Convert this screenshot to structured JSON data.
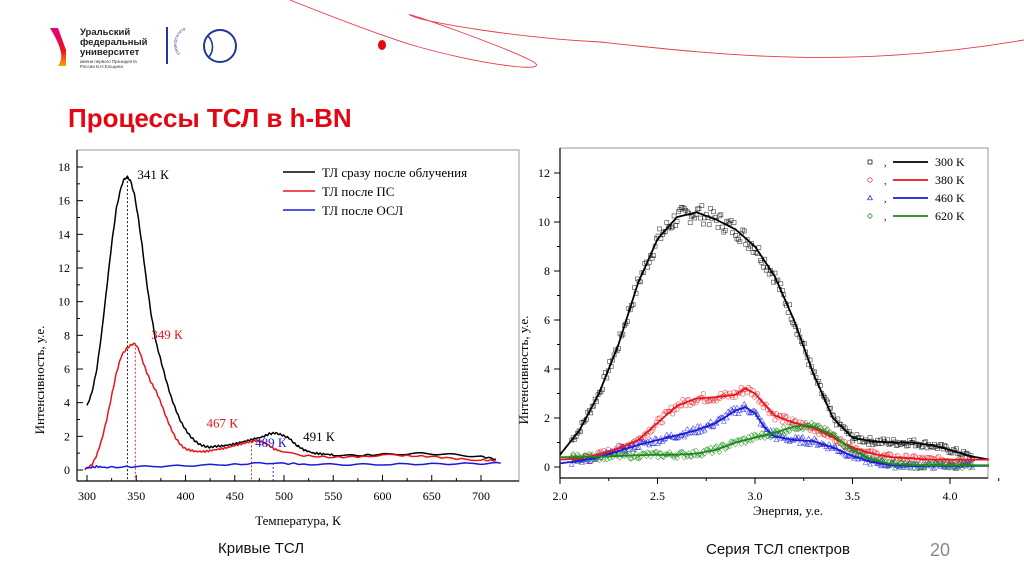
{
  "header": {
    "university_name_lines": [
      "Уральский",
      "федеральный",
      "университет"
    ],
    "university_sub_lines": [
      "имени первого Президента",
      "России Б.Н.Ельцина"
    ],
    "centenary_logo_text": "университета"
  },
  "slide": {
    "title": "Процессы ТСЛ в h-BN",
    "left_caption": "Кривые ТСЛ",
    "right_caption": "Серия ТСЛ спектров",
    "page_number": "20"
  },
  "colors": {
    "brand_red": "#e30613",
    "black": "#000000",
    "red": "#e8141c",
    "blue": "#1a1adc",
    "green": "#1a8a1a",
    "logo_blue": "#1e3a9a"
  },
  "chart_data": [
    {
      "type": "line",
      "title": "",
      "xlabel": "Температура, К",
      "ylabel": "Интенсивность, у.е.",
      "xlim": [
        290,
        725
      ],
      "ylim": [
        -0.6,
        19
      ],
      "xticks": [
        300,
        350,
        400,
        450,
        500,
        550,
        600,
        650,
        700
      ],
      "yticks": [
        0,
        2,
        4,
        6,
        8,
        10,
        12,
        14,
        16,
        18
      ],
      "legend_position": "top-right",
      "series": [
        {
          "name": "ТЛ сразу после облучения",
          "color": "#000000",
          "x": [
            300,
            305,
            310,
            315,
            320,
            325,
            330,
            335,
            338,
            341,
            344,
            348,
            352,
            356,
            360,
            365,
            370,
            375,
            380,
            385,
            390,
            395,
            400,
            405,
            410,
            415,
            420,
            425,
            430,
            440,
            450,
            460,
            470,
            480,
            485,
            491,
            497,
            505,
            512,
            520,
            530,
            540,
            550,
            570,
            600,
            620,
            640,
            660,
            680,
            700,
            715
          ],
          "y": [
            3.8,
            4.6,
            6.0,
            8.2,
            10.8,
            13.4,
            15.6,
            16.9,
            17.3,
            17.4,
            17.2,
            16.4,
            15.0,
            13.3,
            11.4,
            9.3,
            7.6,
            6.5,
            5.4,
            4.4,
            3.6,
            2.9,
            2.4,
            2.0,
            1.7,
            1.5,
            1.4,
            1.35,
            1.4,
            1.45,
            1.55,
            1.7,
            1.85,
            2.0,
            2.15,
            2.2,
            2.1,
            1.9,
            1.5,
            1.2,
            1.0,
            0.95,
            0.9,
            0.85,
            0.92,
            0.95,
            0.98,
            0.95,
            0.88,
            0.8,
            0.65
          ]
        },
        {
          "name": "ТЛ после ПС",
          "color": "#e8141c",
          "x": [
            298,
            305,
            310,
            315,
            320,
            325,
            330,
            335,
            340,
            345,
            349,
            353,
            357,
            360,
            365,
            370,
            375,
            380,
            385,
            390,
            395,
            400,
            410,
            420,
            430,
            440,
            450,
            460,
            467,
            472,
            478,
            485,
            490,
            500,
            520,
            550,
            580,
            600,
            620,
            650,
            680,
            700,
            715
          ],
          "y": [
            0.05,
            0.3,
            0.9,
            1.8,
            3.0,
            4.4,
            5.8,
            6.8,
            7.2,
            7.45,
            7.5,
            7.1,
            6.4,
            5.9,
            5.2,
            4.7,
            4.0,
            3.2,
            2.5,
            1.9,
            1.5,
            1.25,
            1.1,
            1.1,
            1.2,
            1.3,
            1.45,
            1.6,
            1.7,
            1.75,
            1.65,
            1.45,
            1.25,
            1.05,
            0.85,
            0.75,
            0.8,
            0.9,
            0.85,
            0.8,
            0.65,
            0.6,
            0.55
          ]
        },
        {
          "name": "ТЛ после ОСЛ",
          "color": "#1a1adc",
          "x": [
            298,
            310,
            320,
            350,
            400,
            450,
            489,
            520,
            560,
            600,
            650,
            700,
            720
          ],
          "y": [
            0.1,
            0.2,
            0.15,
            0.2,
            0.25,
            0.35,
            0.42,
            0.35,
            0.32,
            0.34,
            0.36,
            0.38,
            0.4
          ]
        }
      ],
      "annotations": [
        {
          "text": "341 К",
          "x": 341,
          "y": 17.4,
          "color": "#000000",
          "marker_line": true
        },
        {
          "text": "349 К",
          "x": 349,
          "y": 7.5,
          "color": "#e8141c",
          "marker_line": true
        },
        {
          "text": "467 К",
          "x": 467,
          "y": 1.7,
          "color": "#e8141c",
          "marker_line": true
        },
        {
          "text": "489 К",
          "x": 489,
          "y": 0.42,
          "color": "#1a1adc",
          "marker_line": true
        },
        {
          "text": "491 К",
          "x": 491,
          "y": 2.2,
          "color": "#000000",
          "marker_line": false
        }
      ]
    },
    {
      "type": "scatter",
      "title": "",
      "xlabel": "Энергия, у.е.",
      "ylabel": "Интенсивность, у.е.",
      "xlim": [
        2.0,
        4.2
      ],
      "ylim": [
        -0.5,
        13
      ],
      "xticks": [
        2.0,
        2.5,
        3.0,
        3.5,
        4.0
      ],
      "yticks": [
        0,
        2,
        4,
        6,
        8,
        10,
        12
      ],
      "legend_position": "top-right",
      "series": [
        {
          "name": "300 K",
          "color": "#000000",
          "marker": "square",
          "fit_x": [
            2.0,
            2.1,
            2.2,
            2.3,
            2.4,
            2.5,
            2.6,
            2.7,
            2.8,
            2.9,
            3.0,
            3.1,
            3.2,
            3.3,
            3.4,
            3.5,
            3.6,
            3.7,
            3.8,
            3.9,
            4.0,
            4.1,
            4.2
          ],
          "fit_y": [
            0.5,
            1.5,
            3.0,
            5.0,
            7.5,
            9.3,
            10.2,
            10.4,
            10.1,
            9.7,
            9.0,
            7.8,
            6.0,
            3.8,
            2.0,
            1.2,
            1.05,
            1.0,
            1.0,
            0.9,
            0.7,
            0.45,
            0.3
          ]
        },
        {
          "name": "380 K",
          "color": "#e8141c",
          "marker": "circle",
          "fit_x": [
            2.0,
            2.1,
            2.2,
            2.3,
            2.4,
            2.5,
            2.6,
            2.7,
            2.8,
            2.9,
            2.95,
            3.0,
            3.1,
            3.2,
            3.3,
            3.4,
            3.5,
            3.6,
            3.7,
            3.8,
            3.9,
            4.0,
            4.1,
            4.2
          ],
          "fit_y": [
            0.3,
            0.35,
            0.5,
            0.75,
            1.1,
            1.8,
            2.5,
            2.8,
            2.85,
            2.95,
            3.2,
            3.0,
            2.1,
            1.8,
            1.6,
            1.2,
            0.8,
            0.55,
            0.4,
            0.35,
            0.3,
            0.3,
            0.3,
            0.3
          ]
        },
        {
          "name": "460 K",
          "color": "#1a1adc",
          "marker": "triangle",
          "fit_x": [
            2.0,
            2.1,
            2.2,
            2.3,
            2.4,
            2.5,
            2.6,
            2.7,
            2.8,
            2.9,
            2.95,
            3.0,
            3.05,
            3.1,
            3.2,
            3.3,
            3.4,
            3.5,
            3.6,
            3.7,
            3.8,
            3.9,
            4.0,
            4.1,
            4.2
          ],
          "fit_y": [
            0.15,
            0.25,
            0.4,
            0.65,
            0.9,
            1.1,
            1.3,
            1.5,
            1.8,
            2.3,
            2.45,
            2.2,
            1.6,
            1.25,
            1.1,
            1.05,
            0.8,
            0.45,
            0.2,
            0.08,
            0.05,
            0.05,
            0.05,
            0.05,
            0.05
          ]
        },
        {
          "name": "620 K",
          "color": "#1a8a1a",
          "marker": "diamond",
          "fit_x": [
            2.0,
            2.1,
            2.2,
            2.3,
            2.4,
            2.5,
            2.6,
            2.7,
            2.8,
            2.9,
            3.0,
            3.1,
            3.2,
            3.25,
            3.3,
            3.4,
            3.5,
            3.6,
            3.7,
            3.8,
            3.9,
            4.0,
            4.1,
            4.2
          ],
          "fit_y": [
            0.4,
            0.4,
            0.42,
            0.45,
            0.48,
            0.5,
            0.5,
            0.55,
            0.7,
            1.0,
            1.2,
            1.4,
            1.65,
            1.7,
            1.65,
            1.3,
            0.7,
            0.3,
            0.12,
            0.08,
            0.07,
            0.07,
            0.07,
            0.07
          ]
        }
      ]
    }
  ]
}
